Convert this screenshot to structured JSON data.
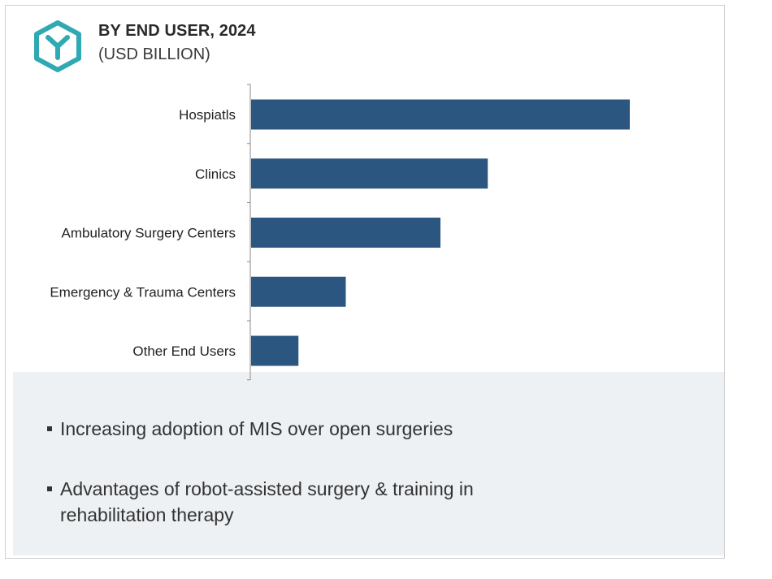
{
  "header": {
    "title": "BY END USER, 2024",
    "subtitle": "(USD BILLION)",
    "logo_icon": "y-hexagon-icon",
    "accent_color": "#2fa9b4"
  },
  "chart_data": {
    "type": "bar",
    "orientation": "horizontal",
    "title": "BY END USER, 2024",
    "subtitle": "(USD BILLION)",
    "categories": [
      "Hospiatls",
      "Clinics",
      "Ambulatory Surgery Centers",
      "Emergency & Trauma Centers",
      "Other End Users"
    ],
    "values": [
      6.4,
      4.0,
      3.2,
      1.6,
      0.8
    ],
    "xlim": [
      0,
      8
    ],
    "xlabel": "",
    "ylabel": "",
    "grid": false,
    "bar_color": "#2b567f"
  },
  "notes": [
    "Increasing adoption of MIS over open surgeries",
    "Advantages of robot-assisted surgery & training in rehabilitation therapy"
  ]
}
